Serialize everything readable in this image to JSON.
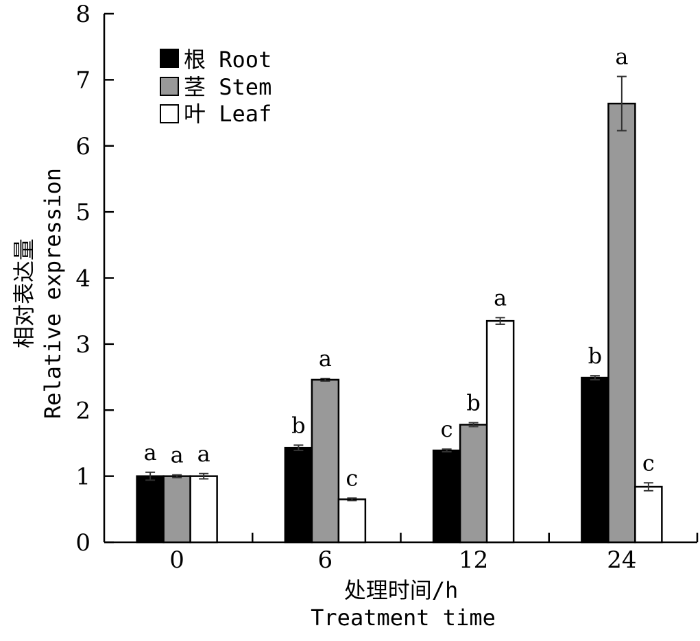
{
  "chart_data": {
    "type": "bar",
    "categories": [
      "0",
      "6",
      "12",
      "24"
    ],
    "series": [
      {
        "name": "根 Root",
        "color": "#000000",
        "values": [
          1.0,
          1.43,
          1.39,
          2.49
        ],
        "errors": [
          0.06,
          0.04,
          0.02,
          0.03
        ],
        "letters": [
          "a",
          "b",
          "c",
          "b"
        ]
      },
      {
        "name": "茎 Stem",
        "color": "#999999",
        "values": [
          1.0,
          2.46,
          1.78,
          6.64
        ],
        "errors": [
          0.02,
          0.02,
          0.03,
          0.41
        ],
        "letters": [
          "a",
          "a",
          "b",
          "a"
        ]
      },
      {
        "name": "叶 Leaf",
        "color": "#ffffff",
        "values": [
          1.0,
          0.65,
          3.35,
          0.84
        ],
        "errors": [
          0.04,
          0.02,
          0.05,
          0.06
        ],
        "letters": [
          "a",
          "c",
          "a",
          "c"
        ]
      }
    ],
    "yticks": [
      "0",
      "1",
      "2",
      "3",
      "4",
      "5",
      "6",
      "7",
      "8"
    ],
    "ylim": [
      0,
      8
    ],
    "xlabel_cn": "处理时间/h",
    "xlabel_en": "Treatment time",
    "ylabel_cn": "相对表达量",
    "ylabel_en": "Relative expression",
    "legend_position": "top-left",
    "grid": false
  }
}
